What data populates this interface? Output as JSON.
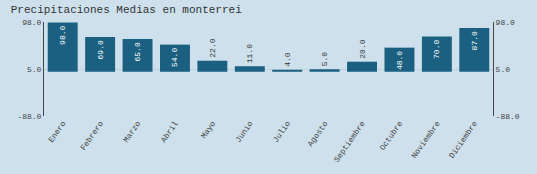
{
  "chart_data": {
    "type": "bar",
    "title": "Precipitaciones Medias en monterrei",
    "categories": [
      "Enero",
      "Febrero",
      "Marzo",
      "Abril",
      "Mayo",
      "Junio",
      "Julio",
      "Agosto",
      "Septiembre",
      "Octubre",
      "Noviembre",
      "Diciembre"
    ],
    "values": [
      98.0,
      69.0,
      65.0,
      54.0,
      22.0,
      11.0,
      4.0,
      5.0,
      20.0,
      48.0,
      70.0,
      87.0
    ],
    "value_labels": [
      "98.0",
      "69.0",
      "65.0",
      "54.0",
      "22.0",
      "11.0",
      "4.0",
      "5.0",
      "20.0",
      "48.0",
      "70.0",
      "87.0"
    ],
    "data_labels": true,
    "color": "#1b6080",
    "ylim": [
      -88,
      99
    ],
    "yticks": [
      {
        "value": -88,
        "label": "-88.0"
      },
      {
        "value": 5,
        "label": "5.0"
      },
      {
        "value": 98,
        "label": "98.0"
      }
    ],
    "y2lim": [
      -88,
      99
    ],
    "y2ticks": [
      {
        "value": -88,
        "label": "-88.0"
      },
      {
        "value": 5,
        "label": "5.0"
      },
      {
        "value": 98,
        "label": "98.0"
      }
    ],
    "grid": true
  }
}
